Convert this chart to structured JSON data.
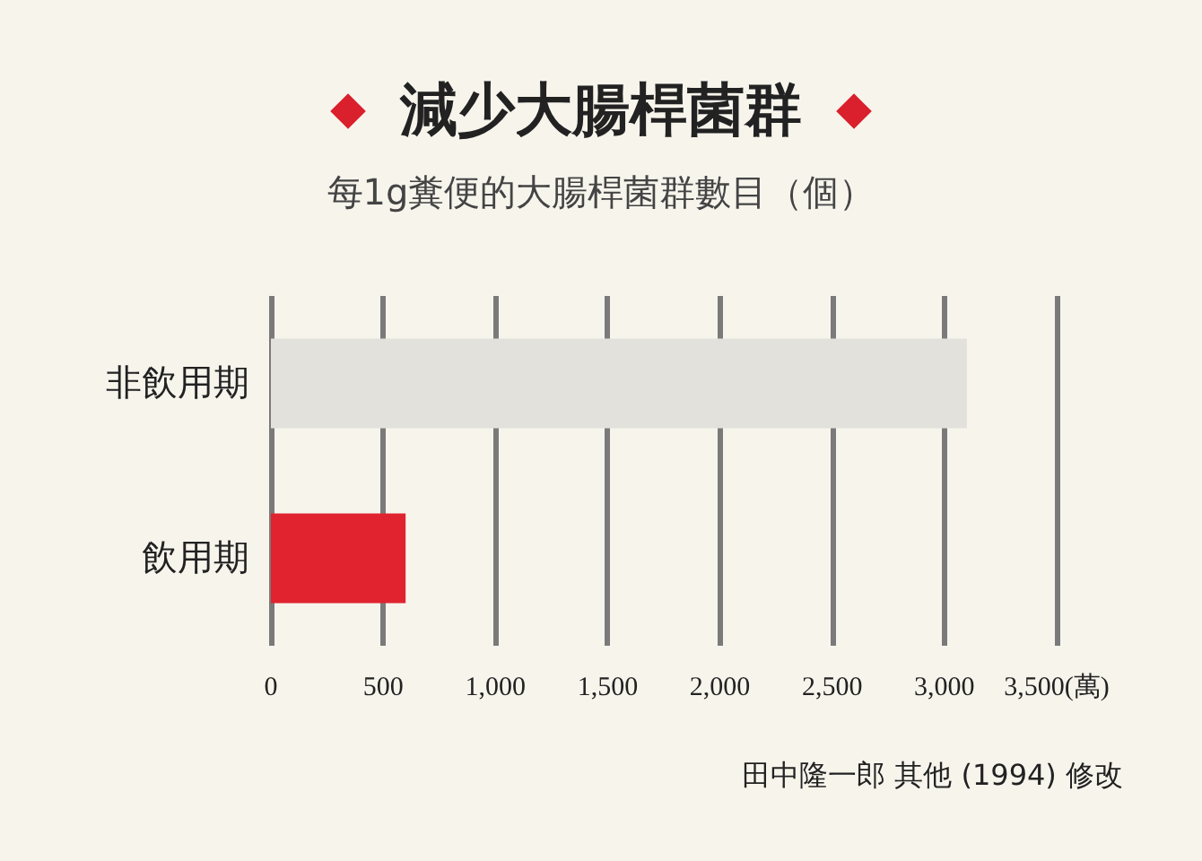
{
  "chart_data": {
    "type": "bar",
    "orientation": "horizontal",
    "title": "減少大腸桿菌群",
    "subtitle": "每1g糞便的大腸桿菌群數目（個）",
    "categories": [
      "非飲用期",
      "飲用期"
    ],
    "values": [
      3100,
      600
    ],
    "colors": [
      "#e3e1dc",
      "#e0232f"
    ],
    "xlim": [
      0,
      3500
    ],
    "xticks": [
      0,
      500,
      {
        "value": 1000,
        "label": "1,000"
      },
      {
        "value": 1500,
        "label": "1,500"
      },
      {
        "value": 2000,
        "label": "2,000"
      },
      {
        "value": 2500,
        "label": "2,500"
      },
      {
        "value": 3000,
        "label": "3,000"
      },
      {
        "value": 3500,
        "label": "3,500(萬)"
      }
    ],
    "grid": "x",
    "annotations": [
      "田中隆一郎 其他 (1994) 修改"
    ]
  }
}
